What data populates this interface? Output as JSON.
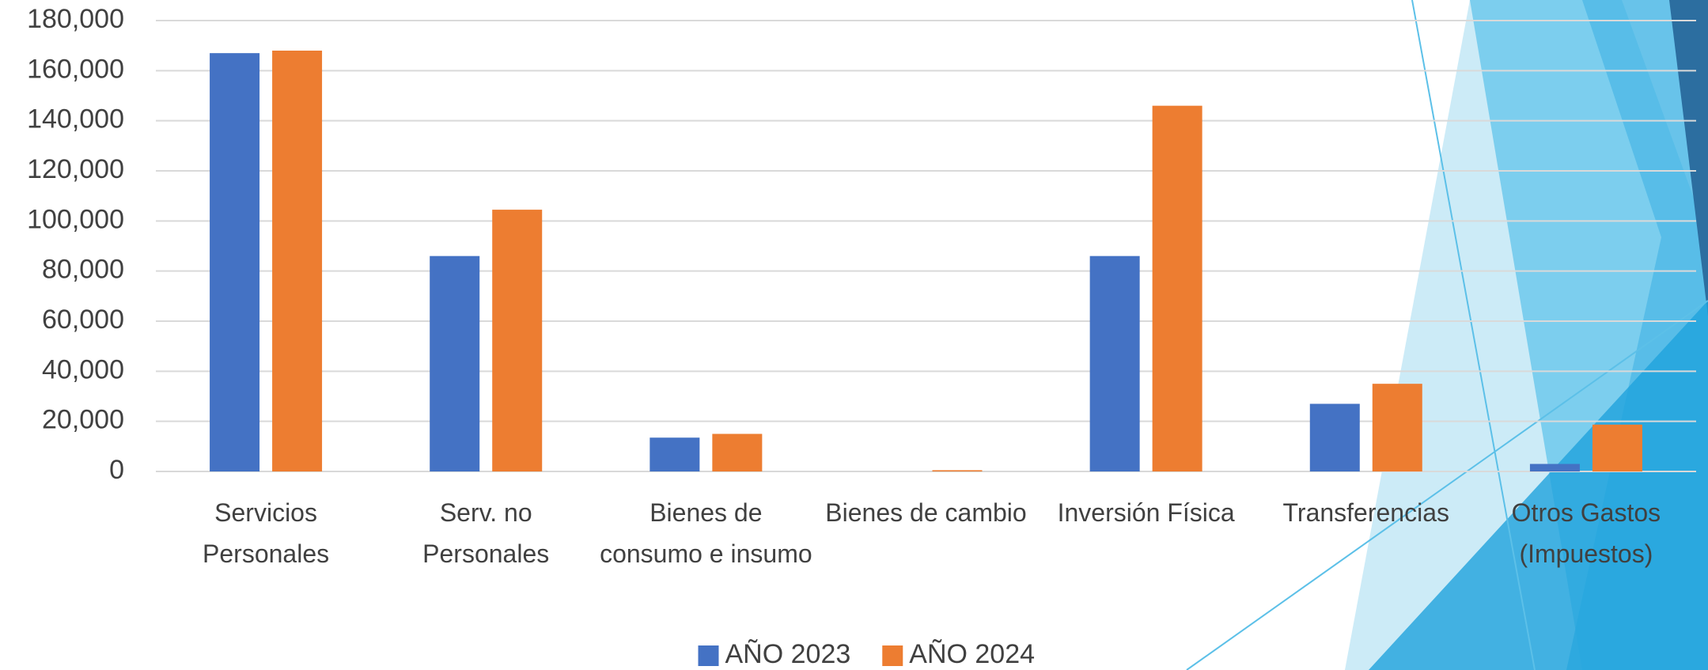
{
  "chart_data": {
    "type": "bar",
    "categories": [
      "Servicios Personales",
      "Serv. no Personales",
      "Bienes de consumo e insumo",
      "Bienes de cambio",
      "Inversión Física",
      "Transferencias",
      "Otros Gastos (Impuestos)"
    ],
    "series": [
      {
        "name": "AÑO 2023",
        "color": "#4472c4",
        "values": [
          167000,
          86000,
          13500,
          0,
          86000,
          27000,
          3000
        ]
      },
      {
        "name": "AÑO 2024",
        "color": "#ed7d31",
        "values": [
          168000,
          104500,
          15000,
          500,
          146000,
          35000,
          18700
        ]
      }
    ],
    "ylim": [
      0,
      180000
    ],
    "yticks": [
      0,
      {
        "value": 20000,
        "label": "20,000"
      },
      {
        "value": 40000,
        "label": "40,000"
      },
      {
        "value": 60000,
        "label": "60,000"
      },
      {
        "value": 80000,
        "label": "80,000"
      },
      {
        "value": 100000,
        "label": "100,000"
      },
      {
        "value": 120000,
        "label": "120,000"
      },
      {
        "value": 140000,
        "label": "140,000"
      },
      {
        "value": 160000,
        "label": "160,000"
      },
      {
        "value": 180000,
        "label": "180,000"
      }
    ],
    "grid": true,
    "legend": "bottom"
  }
}
